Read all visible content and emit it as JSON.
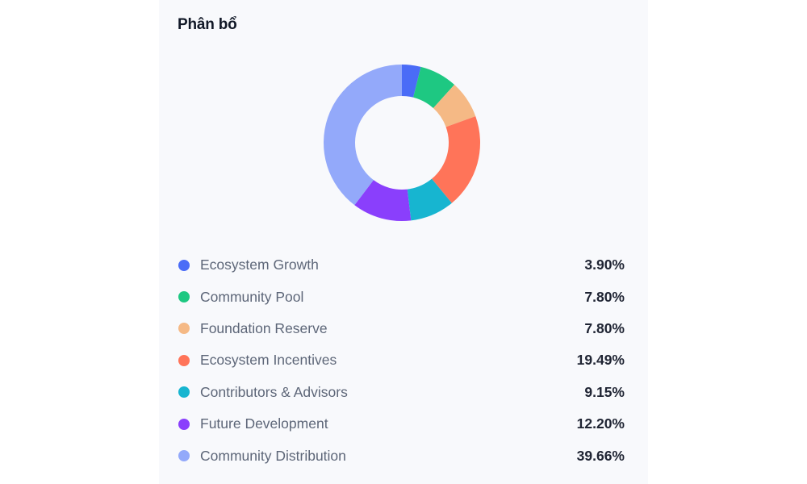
{
  "card": {
    "title": "Phân bổ"
  },
  "chart_data": {
    "type": "pie",
    "variant": "donut",
    "title": "Phân bổ",
    "categories": [
      "Ecosystem Growth",
      "Community Pool",
      "Foundation Reserve",
      "Ecosystem Incentives",
      "Contributors & Advisors",
      "Future Development",
      "Community Distribution"
    ],
    "values": [
      3.9,
      7.8,
      7.8,
      19.49,
      9.15,
      12.2,
      39.66
    ],
    "colors": [
      "#4a6cf7",
      "#1ec882",
      "#f5b985",
      "#ff7459",
      "#17b5d0",
      "#8a3ffc",
      "#93a9fa"
    ],
    "legend_position": "bottom",
    "unit": "%"
  },
  "legend": [
    {
      "label": "Ecosystem Growth",
      "value": "3.90%",
      "color": "#4a6cf7"
    },
    {
      "label": "Community Pool",
      "value": "7.80%",
      "color": "#1ec882"
    },
    {
      "label": "Foundation Reserve",
      "value": "7.80%",
      "color": "#f5b985"
    },
    {
      "label": "Ecosystem Incentives",
      "value": "19.49%",
      "color": "#ff7459"
    },
    {
      "label": "Contributors & Advisors",
      "value": "9.15%",
      "color": "#17b5d0"
    },
    {
      "label": "Future Development",
      "value": "12.20%",
      "color": "#8a3ffc"
    },
    {
      "label": "Community Distribution",
      "value": "39.66%",
      "color": "#93a9fa"
    }
  ]
}
